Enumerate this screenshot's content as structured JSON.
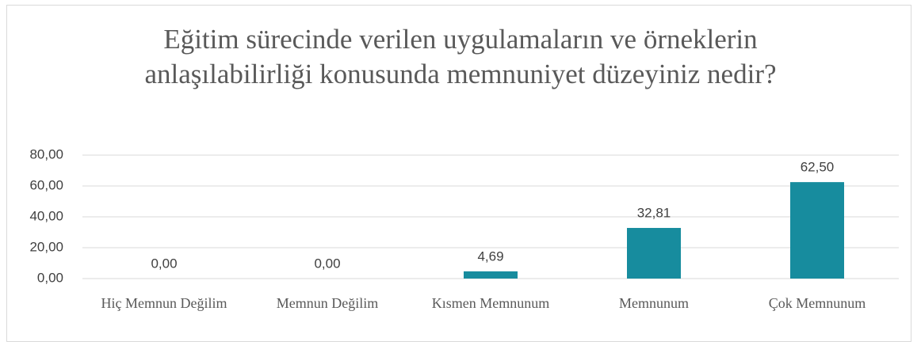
{
  "chart_data": {
    "type": "bar",
    "title": "Eğitim sürecinde verilen uygulamaların ve örneklerin anlaşılabilirliği konusunda memnuniyet düzeyiniz nedir?",
    "categories": [
      "Hiç Memnun Değilim",
      "Memnun Değilim",
      "Kısmen Memnunum",
      "Memnunum",
      "Çok Memnunum"
    ],
    "values": [
      0,
      0,
      4.69,
      32.81,
      62.5
    ],
    "value_labels": [
      "0,00",
      "0,00",
      "4,69",
      "32,81",
      "62,50"
    ],
    "color": "#178c9e",
    "ylim": [
      0,
      80
    ],
    "yticks": [
      {
        "value": 0,
        "label": "0,00"
      },
      {
        "value": 20,
        "label": "20,00"
      },
      {
        "value": 40,
        "label": "40,00"
      },
      {
        "value": 60,
        "label": "60,00"
      },
      {
        "value": 80,
        "label": "80,00"
      }
    ],
    "grid": true
  }
}
